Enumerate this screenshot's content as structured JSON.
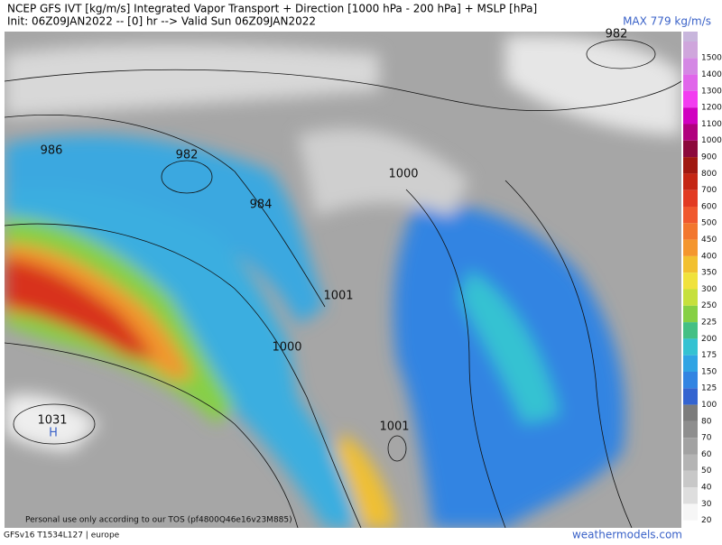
{
  "header": {
    "title": "NCEP GFS IVT [kg/m/s] Integrated Vapor Transport + Direction [1000 hPa - 200 hPa] + MSLP [hPa]",
    "init": "Init: 06Z09JAN2022 -- [0] hr --> Valid Sun 06Z09JAN2022",
    "max": "MAX 779 kg/m/s"
  },
  "colorbar": [
    {
      "label": "1500",
      "color": "#cfa6dc"
    },
    {
      "label": "1400",
      "color": "#d488e4"
    },
    {
      "label": "1300",
      "color": "#e066ea"
    },
    {
      "label": "1200",
      "color": "#f23cf0"
    },
    {
      "label": "1100",
      "color": "#d000c0"
    },
    {
      "label": "1000",
      "color": "#b0007e"
    },
    {
      "label": "900",
      "color": "#8c0a3c"
    },
    {
      "label": "800",
      "color": "#a01810"
    },
    {
      "label": "700",
      "color": "#c42614"
    },
    {
      "label": "600",
      "color": "#e23a22"
    },
    {
      "label": "500",
      "color": "#f0582e"
    },
    {
      "label": "450",
      "color": "#f2762e"
    },
    {
      "label": "400",
      "color": "#f4962e"
    },
    {
      "label": "350",
      "color": "#f2c030"
    },
    {
      "label": "300",
      "color": "#f0e23c"
    },
    {
      "label": "250",
      "color": "#c6e03c"
    },
    {
      "label": "225",
      "color": "#86d044"
    },
    {
      "label": "200",
      "color": "#44c084"
    },
    {
      "label": "175",
      "color": "#34c2d2"
    },
    {
      "label": "150",
      "color": "#30a4e4"
    },
    {
      "label": "125",
      "color": "#3284e2"
    },
    {
      "label": "100",
      "color": "#3464d0"
    },
    {
      "label": "80",
      "color": "#7c7c7c"
    },
    {
      "label": "70",
      "color": "#8e8e8e"
    },
    {
      "label": "60",
      "color": "#a2a2a2"
    },
    {
      "label": "50",
      "color": "#b4b4b4"
    },
    {
      "label": "40",
      "color": "#c8c8c8"
    },
    {
      "label": "30",
      "color": "#dedede"
    },
    {
      "label": "20",
      "color": "#f6f6f6"
    }
  ],
  "pressure_labels": [
    "982",
    "986",
    "982",
    "984",
    "1000",
    "1001",
    "1000",
    "1001",
    "1031",
    "H"
  ],
  "footer": {
    "tos": "Personal use only according to our TOS (pf4800Q46e16v23M885)",
    "model": "GFSv16 T1534L127 | europe",
    "site": "weathermodels.com"
  }
}
